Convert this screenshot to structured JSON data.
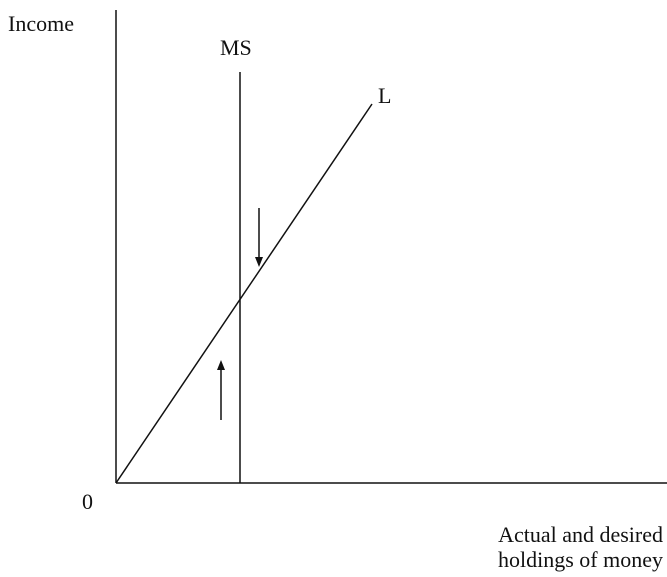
{
  "diagram": {
    "y_axis_label": "Income",
    "x_axis_label_line1": "Actual and desired",
    "x_axis_label_line2": "holdings of money",
    "origin_label": "0",
    "ms_label": "MS",
    "l_label": "L",
    "arrows": [
      {
        "name": "downward-adjustment-arrow",
        "direction": "down"
      },
      {
        "name": "upward-adjustment-arrow",
        "direction": "up"
      }
    ],
    "line_color": "#111111",
    "background": "#ffffff"
  }
}
